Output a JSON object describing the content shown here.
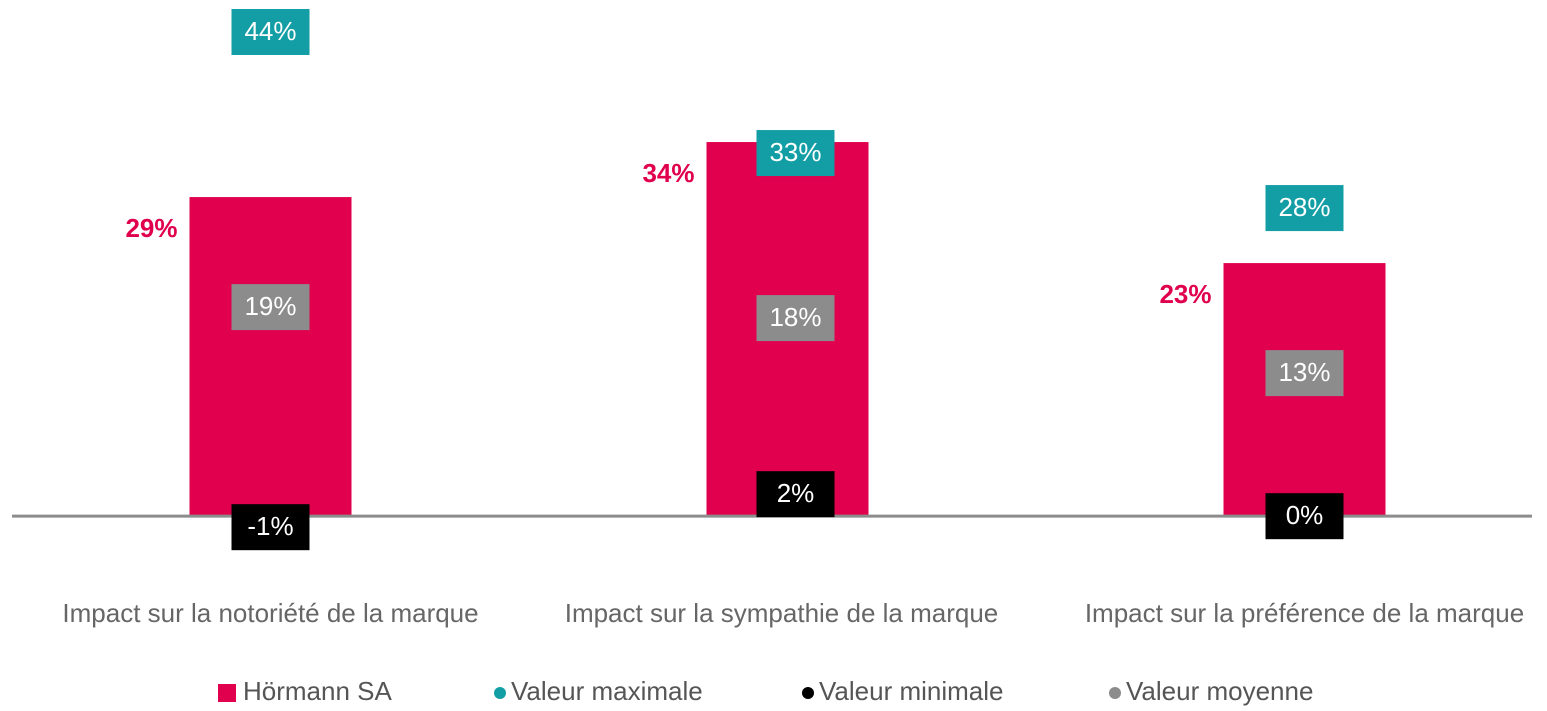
{
  "chart_data": {
    "type": "bar",
    "categories": [
      "Impact sur la notoriété de la marque",
      "Impact sur la sympathie de la marque",
      "Impact sur la préférence de la marque"
    ],
    "series": [
      {
        "name": "Hörmann SA",
        "type": "bar",
        "color": "#e0004d",
        "values": [
          29,
          34,
          23
        ],
        "value_labels": [
          "29%",
          "34%",
          "23%"
        ]
      },
      {
        "name": "Valeur maximale",
        "type": "marker",
        "color": "#139ea6",
        "values": [
          44,
          33,
          28
        ],
        "value_labels": [
          "44%",
          "33%",
          "28%"
        ]
      },
      {
        "name": "Valeur minimale",
        "type": "marker",
        "color": "#000000",
        "values": [
          -1,
          2,
          0
        ],
        "value_labels": [
          "-1%",
          "2%",
          "0%"
        ]
      },
      {
        "name": "Valeur moyenne",
        "type": "marker",
        "color": "#8c8c8c",
        "values": [
          19,
          18,
          13
        ],
        "value_labels": [
          "19%",
          "18%",
          "13%"
        ]
      }
    ],
    "ylim": [
      -5.8,
      46
    ]
  }
}
